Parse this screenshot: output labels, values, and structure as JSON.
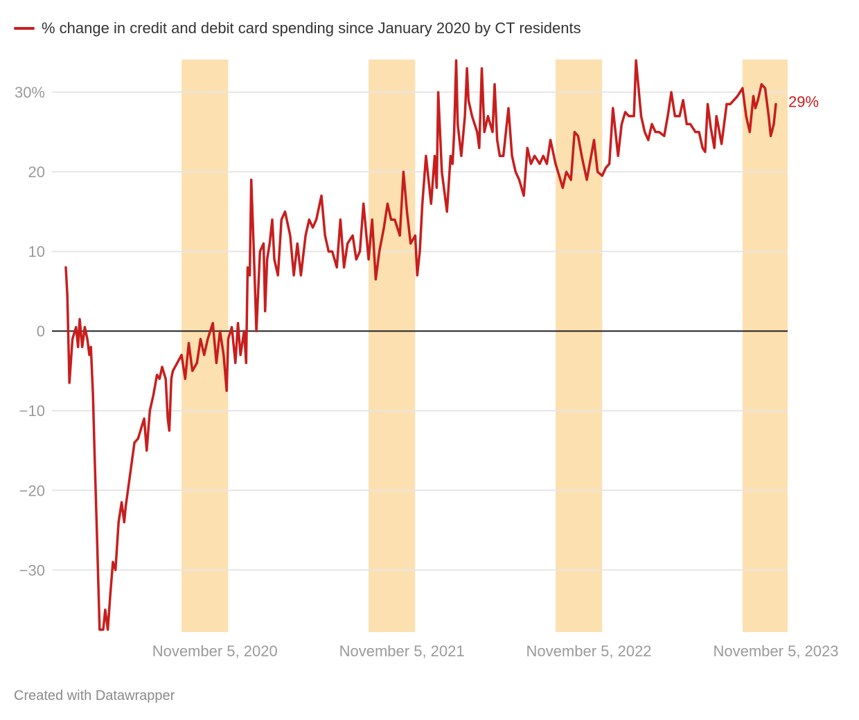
{
  "chart_data": {
    "type": "line",
    "title": "",
    "xlabel": "",
    "ylabel": "",
    "ylim": [
      -37.8,
      34.1
    ],
    "xlim": [
      "2020-01-19",
      "2023-11-28"
    ],
    "grid": true,
    "legend_position": "top-left",
    "y_ticks": [
      {
        "value": 30,
        "label": "30%"
      },
      {
        "value": 20,
        "label": "20"
      },
      {
        "value": 10,
        "label": "10"
      },
      {
        "value": 0,
        "label": "0"
      },
      {
        "value": -10,
        "label": "−10"
      },
      {
        "value": -20,
        "label": "−20"
      },
      {
        "value": -30,
        "label": "−30"
      }
    ],
    "x_ticks": [
      {
        "date": "2020-11-05",
        "label": "November 5, 2020"
      },
      {
        "date": "2021-11-05",
        "label": "November 5, 2021"
      },
      {
        "date": "2022-11-05",
        "label": "November 5, 2022"
      },
      {
        "date": "2023-11-05",
        "label": "November 5, 2023"
      }
    ],
    "shaded_ranges": [
      [
        "2020-09-01",
        "2020-12-01"
      ],
      [
        "2021-09-01",
        "2021-12-01"
      ],
      [
        "2022-09-01",
        "2022-12-01"
      ],
      [
        "2023-09-01",
        "2023-11-28"
      ]
    ],
    "series": [
      {
        "name": "% change in credit and debit card spending since January 2020 by CT residents",
        "color": "#c71e1d",
        "end_label": "29%",
        "points": [
          [
            "2020-01-19",
            8
          ],
          [
            "2020-01-22",
            4.5
          ],
          [
            "2020-01-26",
            -6.5
          ],
          [
            "2020-02-01",
            -1
          ],
          [
            "2020-02-08",
            0.5
          ],
          [
            "2020-02-12",
            -2
          ],
          [
            "2020-02-15",
            1.5
          ],
          [
            "2020-02-20",
            -2
          ],
          [
            "2020-02-25",
            0.5
          ],
          [
            "2020-03-01",
            -1
          ],
          [
            "2020-03-05",
            -3
          ],
          [
            "2020-03-08",
            -2
          ],
          [
            "2020-03-12",
            -8
          ],
          [
            "2020-03-15",
            -15
          ],
          [
            "2020-03-20",
            -26
          ],
          [
            "2020-03-25",
            -37.5
          ],
          [
            "2020-04-01",
            -37.5
          ],
          [
            "2020-04-05",
            -35
          ],
          [
            "2020-04-10",
            -37.5
          ],
          [
            "2020-04-15",
            -33
          ],
          [
            "2020-04-20",
            -29
          ],
          [
            "2020-04-25",
            -30
          ],
          [
            "2020-05-01",
            -24
          ],
          [
            "2020-05-07",
            -21.5
          ],
          [
            "2020-05-12",
            -24
          ],
          [
            "2020-05-15",
            -22
          ],
          [
            "2020-06-01",
            -14
          ],
          [
            "2020-06-08",
            -13.5
          ],
          [
            "2020-06-15",
            -12
          ],
          [
            "2020-06-20",
            -11
          ],
          [
            "2020-06-25",
            -15
          ],
          [
            "2020-07-01",
            -10
          ],
          [
            "2020-07-08",
            -8
          ],
          [
            "2020-07-15",
            -5.5
          ],
          [
            "2020-07-20",
            -6
          ],
          [
            "2020-07-25",
            -4.5
          ],
          [
            "2020-08-01",
            -6
          ],
          [
            "2020-08-05",
            -11
          ],
          [
            "2020-08-08",
            -12.5
          ],
          [
            "2020-08-12",
            -6
          ],
          [
            "2020-08-15",
            -5
          ],
          [
            "2020-09-01",
            -3
          ],
          [
            "2020-09-08",
            -6
          ],
          [
            "2020-09-15",
            -1.5
          ],
          [
            "2020-09-22",
            -5
          ],
          [
            "2020-10-01",
            -4
          ],
          [
            "2020-10-08",
            -1
          ],
          [
            "2020-10-15",
            -3
          ],
          [
            "2020-10-22",
            -1
          ],
          [
            "2020-11-01",
            1
          ],
          [
            "2020-11-08",
            -4
          ],
          [
            "2020-11-15",
            0
          ],
          [
            "2020-11-22",
            -3
          ],
          [
            "2020-11-28",
            -7.5
          ],
          [
            "2020-12-01",
            -1
          ],
          [
            "2020-12-08",
            0.5
          ],
          [
            "2020-12-15",
            -4
          ],
          [
            "2020-12-20",
            1
          ],
          [
            "2020-12-25",
            -3
          ],
          [
            "2021-01-01",
            0
          ],
          [
            "2021-01-05",
            -4
          ],
          [
            "2021-01-08",
            8
          ],
          [
            "2021-01-12",
            7
          ],
          [
            "2021-01-15",
            19
          ],
          [
            "2021-01-20",
            10
          ],
          [
            "2021-01-25",
            0
          ],
          [
            "2021-02-01",
            10
          ],
          [
            "2021-02-08",
            11
          ],
          [
            "2021-02-11",
            2.5
          ],
          [
            "2021-02-15",
            9
          ],
          [
            "2021-02-20",
            11
          ],
          [
            "2021-02-25",
            14
          ],
          [
            "2021-03-01",
            9
          ],
          [
            "2021-03-08",
            7
          ],
          [
            "2021-03-15",
            14
          ],
          [
            "2021-03-22",
            15
          ],
          [
            "2021-04-01",
            12
          ],
          [
            "2021-04-08",
            7
          ],
          [
            "2021-04-15",
            11
          ],
          [
            "2021-04-22",
            7
          ],
          [
            "2021-05-01",
            12
          ],
          [
            "2021-05-08",
            14
          ],
          [
            "2021-05-15",
            13
          ],
          [
            "2021-05-22",
            14
          ],
          [
            "2021-06-01",
            17
          ],
          [
            "2021-06-08",
            12
          ],
          [
            "2021-06-15",
            10
          ],
          [
            "2021-06-22",
            10
          ],
          [
            "2021-07-01",
            8
          ],
          [
            "2021-07-08",
            14
          ],
          [
            "2021-07-15",
            8
          ],
          [
            "2021-07-22",
            11
          ],
          [
            "2021-08-01",
            12
          ],
          [
            "2021-08-08",
            9
          ],
          [
            "2021-08-15",
            10
          ],
          [
            "2021-08-22",
            16
          ],
          [
            "2021-09-01",
            9
          ],
          [
            "2021-09-08",
            14
          ],
          [
            "2021-09-15",
            6.5
          ],
          [
            "2021-09-22",
            10
          ],
          [
            "2021-10-01",
            13
          ],
          [
            "2021-10-08",
            16
          ],
          [
            "2021-10-15",
            14
          ],
          [
            "2021-10-22",
            14
          ],
          [
            "2021-11-01",
            12
          ],
          [
            "2021-11-08",
            20
          ],
          [
            "2021-11-15",
            15
          ],
          [
            "2021-11-22",
            11
          ],
          [
            "2021-12-01",
            12
          ],
          [
            "2021-12-05",
            7
          ],
          [
            "2021-12-10",
            10
          ],
          [
            "2021-12-15",
            16
          ],
          [
            "2021-12-22",
            22
          ],
          [
            "2022-01-01",
            16
          ],
          [
            "2022-01-08",
            22
          ],
          [
            "2022-01-12",
            18
          ],
          [
            "2022-01-15",
            30
          ],
          [
            "2022-01-22",
            20
          ],
          [
            "2022-02-01",
            15
          ],
          [
            "2022-02-08",
            22
          ],
          [
            "2022-02-12",
            21
          ],
          [
            "2022-02-15",
            25
          ],
          [
            "2022-02-19",
            34
          ],
          [
            "2022-02-22",
            26
          ],
          [
            "2022-03-01",
            22
          ],
          [
            "2022-03-08",
            27
          ],
          [
            "2022-03-12",
            33
          ],
          [
            "2022-03-15",
            29
          ],
          [
            "2022-03-22",
            27
          ],
          [
            "2022-04-01",
            25
          ],
          [
            "2022-04-05",
            23
          ],
          [
            "2022-04-10",
            33
          ],
          [
            "2022-04-15",
            25
          ],
          [
            "2022-04-22",
            27
          ],
          [
            "2022-05-01",
            25
          ],
          [
            "2022-05-05",
            31
          ],
          [
            "2022-05-10",
            24
          ],
          [
            "2022-05-15",
            22
          ],
          [
            "2022-05-22",
            22
          ],
          [
            "2022-06-01",
            28
          ],
          [
            "2022-06-08",
            22
          ],
          [
            "2022-06-15",
            20
          ],
          [
            "2022-06-22",
            19
          ],
          [
            "2022-07-01",
            17
          ],
          [
            "2022-07-08",
            23
          ],
          [
            "2022-07-15",
            21
          ],
          [
            "2022-07-22",
            22
          ],
          [
            "2022-08-01",
            21
          ],
          [
            "2022-08-08",
            22
          ],
          [
            "2022-08-15",
            21
          ],
          [
            "2022-08-22",
            24
          ],
          [
            "2022-09-01",
            21
          ],
          [
            "2022-09-08",
            19.5
          ],
          [
            "2022-09-15",
            18
          ],
          [
            "2022-09-22",
            20
          ],
          [
            "2022-10-01",
            19
          ],
          [
            "2022-10-08",
            25
          ],
          [
            "2022-10-15",
            24.5
          ],
          [
            "2022-10-22",
            22
          ],
          [
            "2022-11-01",
            19
          ],
          [
            "2022-11-08",
            21.5
          ],
          [
            "2022-11-15",
            24
          ],
          [
            "2022-11-22",
            20
          ],
          [
            "2022-12-01",
            19.5
          ],
          [
            "2022-12-08",
            20.5
          ],
          [
            "2022-12-15",
            21
          ],
          [
            "2022-12-22",
            28
          ],
          [
            "2023-01-01",
            22
          ],
          [
            "2023-01-08",
            26
          ],
          [
            "2023-01-15",
            27.5
          ],
          [
            "2023-01-22",
            27
          ],
          [
            "2023-02-01",
            27
          ],
          [
            "2023-02-05",
            34
          ],
          [
            "2023-02-15",
            27
          ],
          [
            "2023-02-22",
            25
          ],
          [
            "2023-03-01",
            24
          ],
          [
            "2023-03-08",
            26
          ],
          [
            "2023-03-15",
            25
          ],
          [
            "2023-03-22",
            25
          ],
          [
            "2023-04-01",
            24.5
          ],
          [
            "2023-04-08",
            27
          ],
          [
            "2023-04-15",
            30
          ],
          [
            "2023-04-22",
            27
          ],
          [
            "2023-05-01",
            27
          ],
          [
            "2023-05-08",
            29
          ],
          [
            "2023-05-15",
            26
          ],
          [
            "2023-05-22",
            26
          ],
          [
            "2023-06-01",
            25
          ],
          [
            "2023-06-08",
            25
          ],
          [
            "2023-06-15",
            23
          ],
          [
            "2023-06-20",
            22.5
          ],
          [
            "2023-06-25",
            28.5
          ],
          [
            "2023-07-01",
            25.5
          ],
          [
            "2023-07-08",
            23
          ],
          [
            "2023-07-12",
            27
          ],
          [
            "2023-07-15",
            26
          ],
          [
            "2023-07-22",
            23.5
          ],
          [
            "2023-08-01",
            28.5
          ],
          [
            "2023-08-08",
            28.5
          ],
          [
            "2023-08-15",
            29
          ],
          [
            "2023-08-22",
            29.5
          ],
          [
            "2023-09-01",
            30.5
          ],
          [
            "2023-09-08",
            27
          ],
          [
            "2023-09-15",
            25
          ],
          [
            "2023-09-22",
            29.5
          ],
          [
            "2023-09-26",
            28
          ],
          [
            "2023-10-01",
            29
          ],
          [
            "2023-10-08",
            31
          ],
          [
            "2023-10-15",
            30.5
          ],
          [
            "2023-10-22",
            27
          ],
          [
            "2023-10-26",
            24.5
          ],
          [
            "2023-11-01",
            26
          ],
          [
            "2023-11-05",
            28.5
          ]
        ]
      }
    ],
    "colors": {
      "line": "#c71e1d",
      "shade": "#fde0b0",
      "grid": "#e6e6e6",
      "zero_line": "#222222",
      "tick_text": "#9a9a9a"
    }
  },
  "footer": {
    "credit": "Created with Datawrapper"
  }
}
